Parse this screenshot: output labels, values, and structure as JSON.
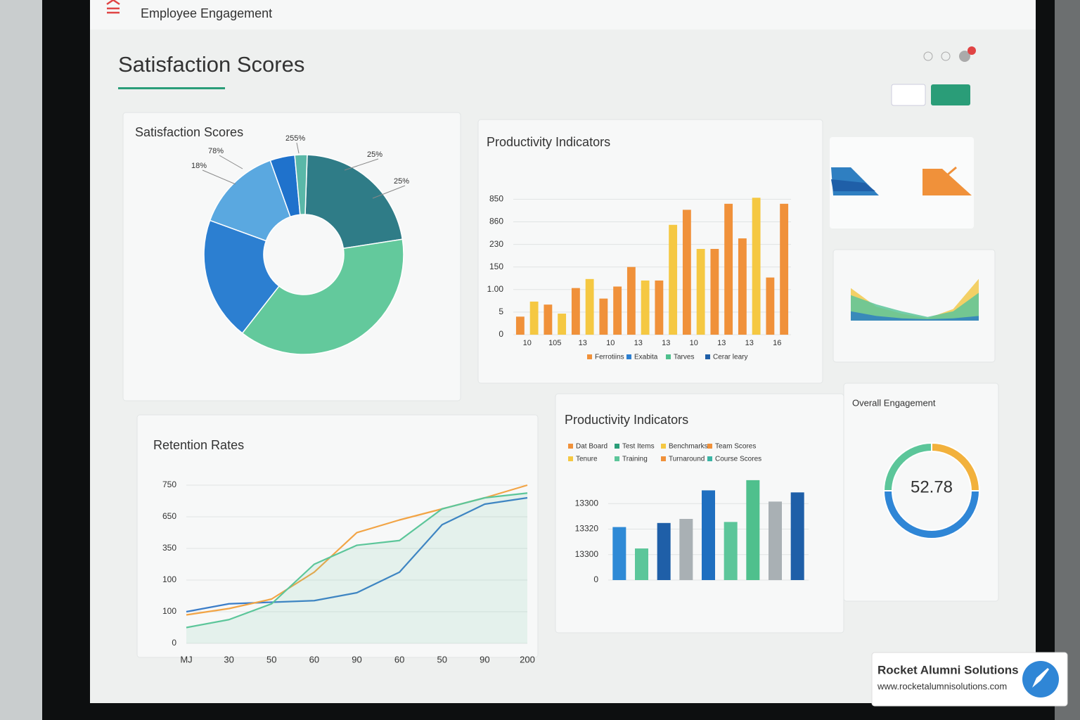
{
  "header": {
    "app": "Employee Engagement",
    "title": "Satisfaction Scores"
  },
  "charts": [
    {
      "type": "donut",
      "title": "Satisfaction Scores",
      "values": [
        22,
        38,
        20,
        14,
        4,
        2
      ],
      "colors": [
        "#2f7c87",
        "#63c99c",
        "#2c7fd1",
        "#5aa8e0",
        "#1f72cc",
        "#5ab8a8"
      ],
      "annotations": [
        "78%",
        "18%",
        "255%",
        "25%",
        "25%"
      ]
    },
    {
      "type": "bar",
      "title": "Productivity Indicators",
      "categories": [
        "10",
        null,
        "105",
        null,
        "13",
        null,
        "10",
        null,
        "13",
        null,
        "13",
        null,
        "10",
        null,
        "13",
        null,
        "13",
        null,
        "16",
        null
      ],
      "values": [
        12,
        22,
        20,
        14,
        31,
        37,
        24,
        32,
        45,
        36,
        36,
        73,
        83,
        57,
        57,
        87,
        64,
        91,
        38,
        87
      ],
      "colors": [
        "#f0913a",
        "#f5c842",
        "#f0913a",
        "#f5c842",
        "#f0913a",
        "#f5c842",
        "#f0913a",
        "#f0913a",
        "#f0913a",
        "#f5c842",
        "#f0913a",
        "#f5c842",
        "#f0913a",
        "#f5c842",
        "#f0913a",
        "#f0913a",
        "#f0913a",
        "#f5c842",
        "#f0913a",
        "#f0913a"
      ],
      "ylim": [
        0,
        100
      ],
      "yticks": [
        0,
        {
          "value": 15,
          "label": "5"
        },
        {
          "value": 30,
          "label": "1.00"
        },
        {
          "value": 45,
          "label": "150"
        },
        {
          "value": 60,
          "label": "230"
        },
        {
          "value": 75,
          "label": "860"
        },
        {
          "value": 90,
          "label": "850"
        }
      ],
      "legend": [
        {
          "name": "Ferrotiins",
          "color": "#f0913a"
        },
        {
          "name": "Exabita",
          "color": "#2c7fd1"
        },
        {
          "name": "Tarves",
          "color": "#4fc08d"
        },
        {
          "name": "Cerar leary",
          "color": "#1f5fa8"
        }
      ]
    },
    {
      "type": "line",
      "title": "Retention Rates",
      "categories": [
        "MJ",
        "30",
        "50",
        "60",
        "90",
        "60",
        "50",
        "90",
        "200"
      ],
      "series": [
        {
          "name": "Blue",
          "color": "#3b7dc8",
          "values": [
            20,
            25,
            26,
            27,
            32,
            45,
            75,
            88,
            92
          ]
        },
        {
          "name": "Orange",
          "color": "#f2a445",
          "values": [
            18,
            22,
            28,
            45,
            70,
            78,
            85,
            92,
            100
          ]
        },
        {
          "name": "Green",
          "color": "#5cc69a",
          "values": [
            10,
            15,
            25,
            50,
            62,
            65,
            85,
            92,
            95
          ]
        }
      ],
      "ylim": [
        0,
        100
      ],
      "yticks": [
        0,
        {
          "value": 20,
          "label": "100"
        },
        {
          "value": 40,
          "label": "100"
        },
        {
          "value": 60,
          "label": "350"
        },
        {
          "value": 80,
          "label": "650"
        },
        {
          "value": 100,
          "label": "750"
        }
      ]
    },
    {
      "type": "bar",
      "title": "Productivity Indicators",
      "categories": [
        null,
        null,
        null,
        null,
        null,
        null,
        null,
        null,
        null
      ],
      "values": [
        52,
        31,
        56,
        60,
        88,
        57,
        98,
        77,
        86
      ],
      "colors": [
        "#2f8ad6",
        "#5cc69a",
        "#1f5fa8",
        "#a9b0b4",
        "#1f6fc0",
        "#5cc69a",
        "#4fc08d",
        "#a9b0b4",
        "#1f5fa8"
      ],
      "ylim": [
        0,
        100
      ],
      "yticks": [
        0,
        {
          "value": 25,
          "label": "13300"
        },
        {
          "value": 50,
          "label": "13320"
        },
        {
          "value": 75,
          "label": "13300"
        }
      ],
      "legend": [
        {
          "name": "Dat Board",
          "color": "#f0913a"
        },
        {
          "name": "Test Items",
          "color": "#2a9d78"
        },
        {
          "name": "Benchmarks",
          "color": "#f5c842"
        },
        {
          "name": "Team Scores",
          "color": "#f0913a"
        },
        {
          "name": "Tenure",
          "color": "#f5c842"
        },
        {
          "name": "Training",
          "color": "#5cc69a"
        },
        {
          "name": "Turnaround",
          "color": "#f0913a"
        },
        {
          "name": "Course Scores",
          "color": "#3bb5a5"
        }
      ]
    },
    {
      "type": "gauge",
      "title": "Overall Engagement",
      "value": 52.78,
      "segments": [
        25,
        50,
        25
      ],
      "colors": [
        "#f2b13c",
        "#2f86d6",
        "#5cc69a"
      ]
    },
    {
      "type": "area",
      "categories": [
        null,
        null,
        null,
        null,
        null,
        null
      ],
      "series": [
        {
          "name": "Yellow",
          "color": "#f2c94c",
          "values": [
            70,
            30,
            15,
            5,
            25,
            90
          ]
        },
        {
          "name": "Green",
          "color": "#5cc69a",
          "values": [
            55,
            35,
            20,
            8,
            20,
            60
          ]
        },
        {
          "name": "Blue",
          "color": "#2f7fc1",
          "values": [
            20,
            10,
            5,
            3,
            5,
            10
          ]
        }
      ],
      "ylim": [
        0,
        100
      ]
    }
  ],
  "brand": {
    "name": "Rocket Alumni Solutions",
    "url": "www.rocketalumnisolutions.com"
  }
}
